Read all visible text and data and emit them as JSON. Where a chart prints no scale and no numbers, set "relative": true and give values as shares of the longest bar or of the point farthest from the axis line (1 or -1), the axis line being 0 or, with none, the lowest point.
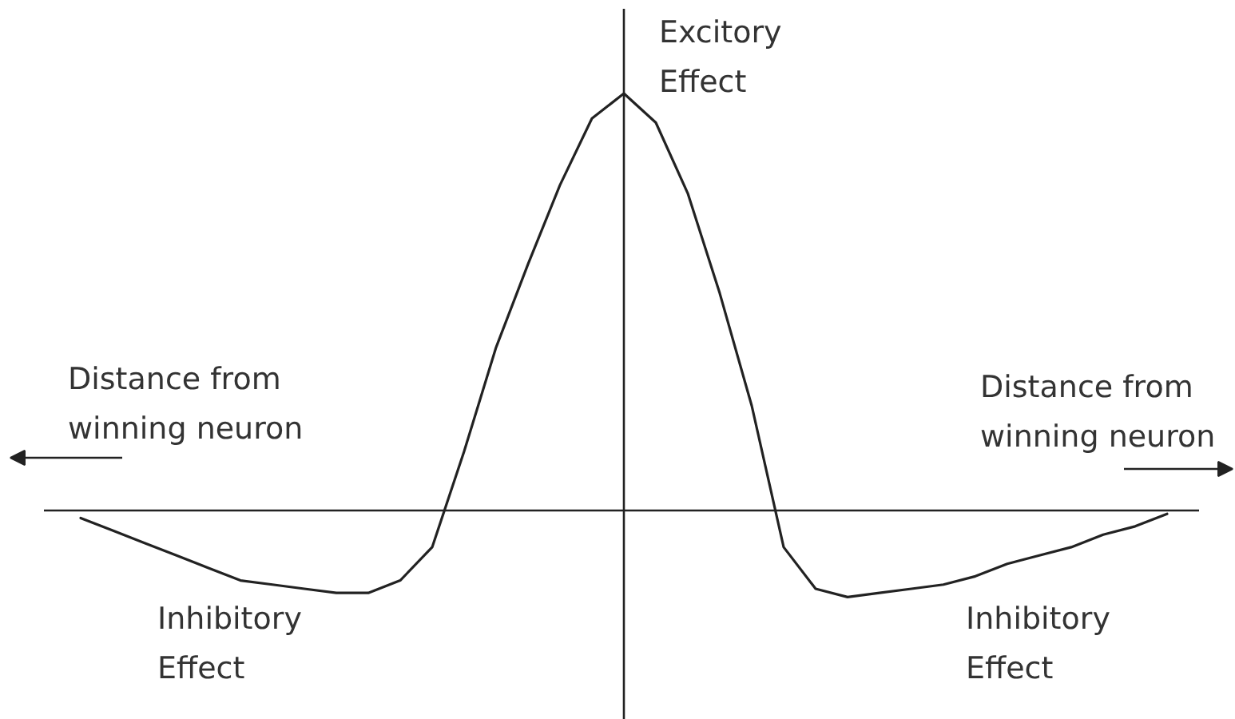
{
  "chart_data": {
    "type": "line",
    "relative": true,
    "color": "#222222",
    "categories": [
      null,
      null,
      null,
      null,
      null,
      null,
      null,
      null,
      null,
      null,
      null,
      null,
      null,
      null,
      null,
      null,
      null,
      null,
      null,
      null,
      null,
      null,
      null,
      null,
      null,
      null,
      null,
      null,
      null,
      null,
      null,
      null,
      null,
      null,
      null
    ],
    "values": [
      -0.02,
      -0.05,
      -0.08,
      -0.11,
      -0.14,
      -0.17,
      -0.18,
      -0.19,
      -0.2,
      -0.2,
      -0.17,
      -0.09,
      0.14,
      0.39,
      0.59,
      0.78,
      0.94,
      1,
      0.93,
      0.76,
      0.52,
      0.25,
      -0.09,
      -0.19,
      -0.21,
      -0.2,
      -0.19,
      -0.18,
      -0.16,
      -0.13,
      -0.11,
      -0.09,
      -0.06,
      -0.04,
      -0.01
    ],
    "annotations": [
      "Excitory\nEffect",
      "Distance from\nwinning neuron",
      "Inhibitory\nEffect",
      "Distance from\nwinning neuron",
      "Inhibitory\nEffect"
    ]
  }
}
